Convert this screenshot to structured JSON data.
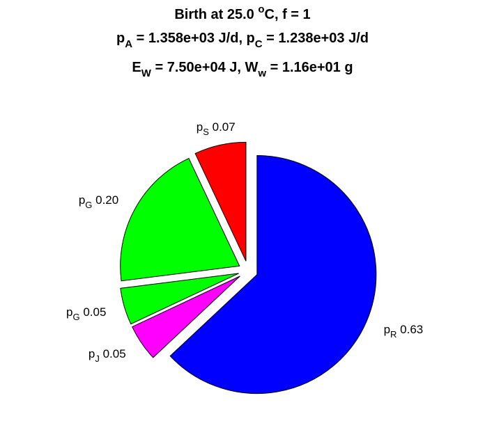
{
  "title": {
    "line1": {
      "a": "Birth at 25.0 ",
      "sup": "o",
      "b": "C, f = 1"
    },
    "line2": {
      "p": "p",
      "subA": "A",
      "valA": " = 1.358e+03 J/d, p",
      "subC": "C",
      "valC": " = 1.238e+03 J/d"
    },
    "line3": {
      "e": "E",
      "subW": "W",
      "valE": " = 7.50e+04 J, W",
      "subw": "w",
      "valW": " = 1.16e+01 g"
    }
  },
  "chart_data": {
    "type": "pie",
    "title": "Birth at 25.0 oC, f = 1 / pA = 1.358e+03 J/d, pC = 1.238e+03 J/d / EW = 7.50e+04 J, Ww = 1.16e+01 g",
    "exploded": true,
    "start": "12 o'clock",
    "direction": "clockwise",
    "slices": [
      {
        "label": "pR",
        "base": "p",
        "sub": "R",
        "value": 0.63,
        "value_text": "0.63",
        "color": "#0000ff"
      },
      {
        "label": "pJ",
        "base": "p",
        "sub": "J",
        "value": 0.05,
        "value_text": "0.05",
        "color": "#ff00ff"
      },
      {
        "label": "pG",
        "base": "p",
        "sub": "G",
        "value": 0.05,
        "value_text": "0.05",
        "color": "#00ff00"
      },
      {
        "label": "pG",
        "base": "p",
        "sub": "G",
        "value": 0.2,
        "value_text": "0.20",
        "color": "#00ff00"
      },
      {
        "label": "pS",
        "base": "p",
        "sub": "S",
        "value": 0.07,
        "value_text": "0.07",
        "color": "#ff0000"
      }
    ]
  }
}
